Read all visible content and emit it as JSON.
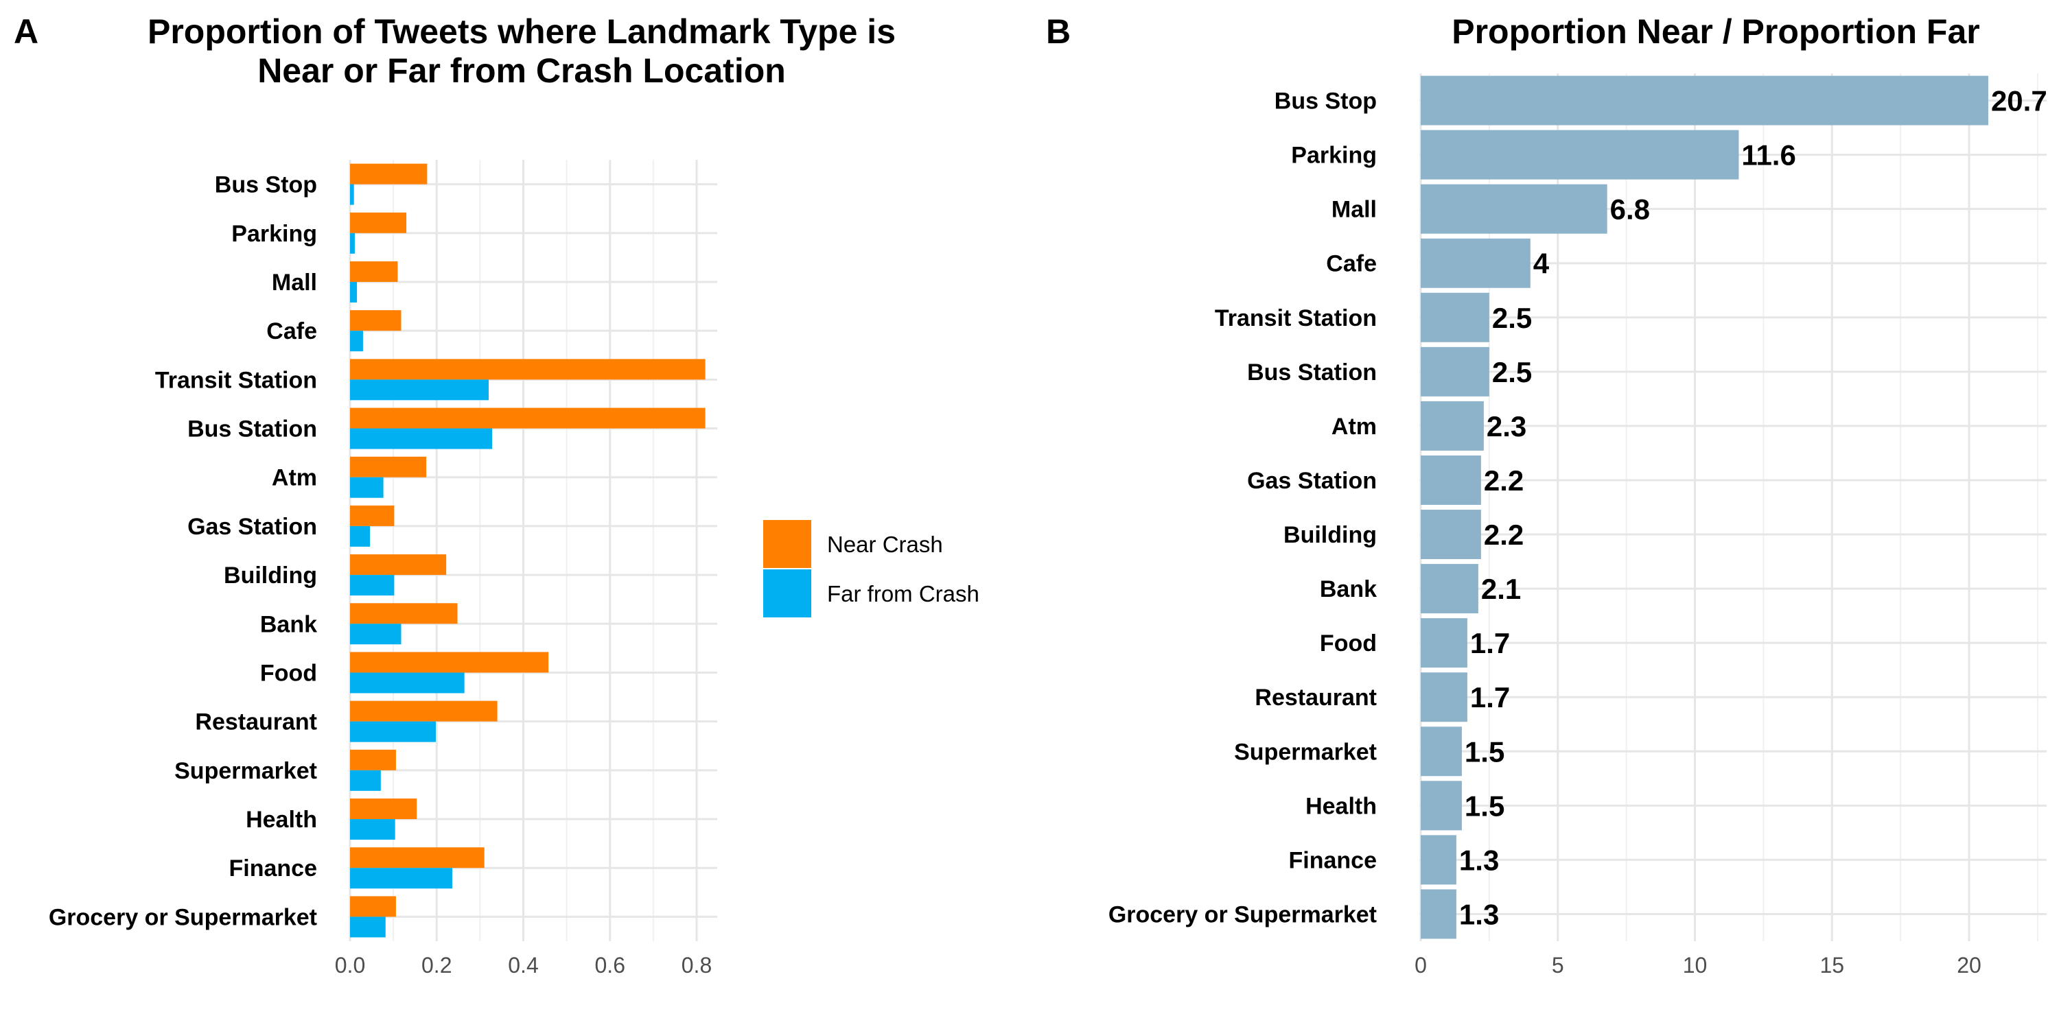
{
  "chart_data": [
    {
      "panel": "A",
      "type": "bar",
      "orientation": "horizontal",
      "title_lines": [
        "Proportion of Tweets where Landmark Type is",
        "Near or Far from Crash Location"
      ],
      "xlabel": "",
      "ylabel": "",
      "categories": [
        "Bus Stop",
        "Parking",
        "Mall",
        "Cafe",
        "Transit Station",
        "Bus Station",
        "Atm",
        "Gas Station",
        "Building",
        "Bank",
        "Food",
        "Restaurant",
        "Supermarket",
        "Health",
        "Finance",
        "Grocery or Supermarket"
      ],
      "series": [
        {
          "name": "Near Crash",
          "color": "#FF7F00",
          "values": [
            0.178,
            0.13,
            0.11,
            0.118,
            0.82,
            0.82,
            0.176,
            0.102,
            0.222,
            0.248,
            0.458,
            0.34,
            0.106,
            0.154,
            0.31,
            0.106
          ]
        },
        {
          "name": "Far from Crash",
          "color": "#00B0F0",
          "values": [
            0.009,
            0.011,
            0.016,
            0.03,
            0.32,
            0.328,
            0.077,
            0.046,
            0.102,
            0.118,
            0.264,
            0.198,
            0.071,
            0.104,
            0.236,
            0.082
          ]
        }
      ],
      "xlim": [
        0,
        0.85
      ],
      "xticks": [
        0,
        0.2,
        0.4,
        0.6,
        0.8
      ],
      "xtick_labels": [
        "0.0",
        "0.2",
        "0.4",
        "0.6",
        "0.8"
      ],
      "grid": true,
      "legend_position": "right"
    },
    {
      "panel": "B",
      "type": "bar",
      "orientation": "horizontal",
      "title": "Proportion Near / Proportion Far",
      "xlabel": "",
      "ylabel": "",
      "categories": [
        "Bus Stop",
        "Parking",
        "Mall",
        "Cafe",
        "Transit Station",
        "Bus Station",
        "Atm",
        "Gas Station",
        "Building",
        "Bank",
        "Food",
        "Restaurant",
        "Supermarket",
        "Health",
        "Finance",
        "Grocery or Supermarket"
      ],
      "values": [
        20.7,
        11.6,
        6.8,
        4,
        2.5,
        2.5,
        2.3,
        2.2,
        2.2,
        2.1,
        1.7,
        1.7,
        1.5,
        1.5,
        1.3,
        1.3
      ],
      "value_labels": [
        "20.7",
        "11.6",
        "6.8",
        "4",
        "2.5",
        "2.5",
        "2.3",
        "2.2",
        "2.2",
        "2.1",
        "1.7",
        "1.7",
        "1.5",
        "1.5",
        "1.3",
        "1.3"
      ],
      "color": "#8DB3CB",
      "xlim": [
        0,
        22.5
      ],
      "xticks": [
        0,
        5,
        10,
        15,
        20
      ],
      "xtick_labels": [
        "0",
        "5",
        "10",
        "15",
        "20"
      ],
      "grid": true,
      "legend": false
    }
  ]
}
